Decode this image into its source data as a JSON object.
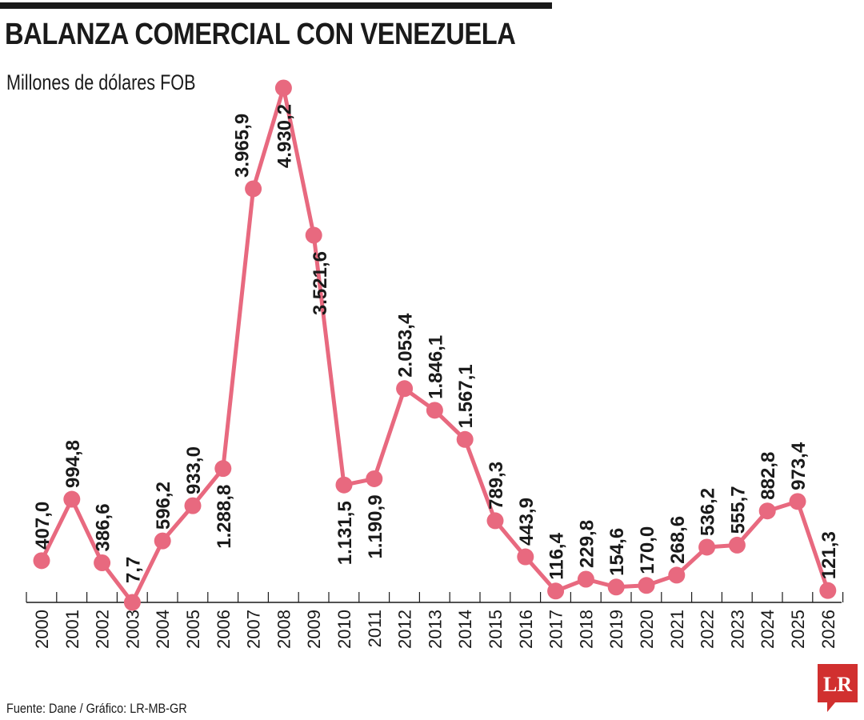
{
  "title": "BALANZA COMERCIAL CON VENEZUELA",
  "subtitle": "Millones de dólares FOB",
  "source": "Fuente: Dane / Gráfico: LR-MB-GR",
  "logo_text": "LR",
  "colors": {
    "line": "#e8697f",
    "logo": "#d1302f",
    "text": "#1a1a1a"
  },
  "chart_data": {
    "type": "line",
    "title": "BALANZA COMERCIAL CON VENEZUELA",
    "ylabel": "Millones de dólares FOB",
    "xlabel": "",
    "ylim": [
      0,
      5000
    ],
    "grid": false,
    "categories": [
      "2000",
      "2001",
      "2002",
      "2003",
      "2004",
      "2005",
      "2006",
      "2007",
      "2008",
      "2009",
      "2010",
      "2011",
      "2012",
      "2013",
      "2014",
      "2015",
      "2016",
      "2017",
      "2018",
      "2019",
      "2020",
      "2021",
      "2022",
      "2023",
      "2024",
      "2025",
      "2026"
    ],
    "values": [
      407.0,
      994.8,
      386.6,
      7.7,
      596.2,
      933.0,
      1288.8,
      3965.9,
      4930.2,
      3521.6,
      1131.5,
      1190.9,
      2053.4,
      1846.1,
      1567.1,
      789.3,
      443.9,
      116.4,
      229.8,
      154.6,
      170.0,
      268.6,
      536.2,
      555.7,
      882.8,
      973.4,
      121.3
    ],
    "labels": [
      "407,0",
      "994,8",
      "386,6",
      "7,7",
      "596,2",
      "933,0",
      "1.288,8",
      "3.965,9",
      "4.930,2",
      "3.521,6",
      "1.131,5",
      "1.190,9",
      "2.053,4",
      "1.846,1",
      "1.567,1",
      "789,3",
      "443,9",
      "116,4",
      "229,8",
      "154,6",
      "170,0",
      "268,6",
      "536,2",
      "555,7",
      "882,8",
      "973,4",
      "121,3"
    ]
  }
}
